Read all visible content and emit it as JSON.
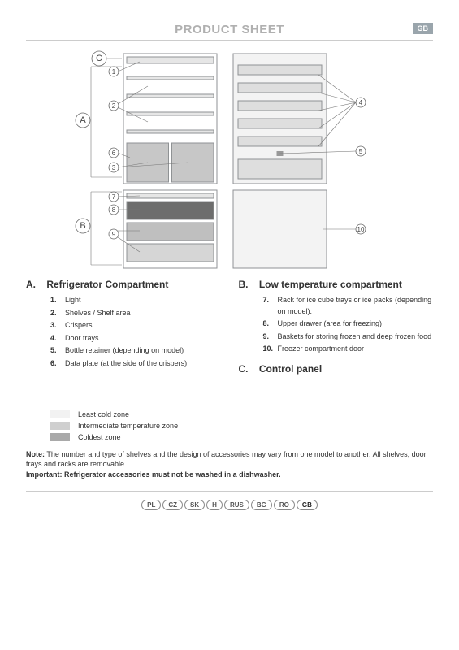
{
  "header": {
    "title": "PRODUCT SHEET",
    "lang": "GB"
  },
  "diagram": {
    "labels": {
      "A": "A",
      "B": "B",
      "C": "C"
    },
    "callouts": [
      "1",
      "2",
      "3",
      "4",
      "5",
      "6",
      "7",
      "8",
      "9",
      "10"
    ],
    "colors": {
      "outline": "#8f9294",
      "shelf": "#e6e6e6",
      "crisper": "#b7b7b7",
      "drawerDark": "#6d6d6d",
      "drawerMid": "#bfbfbf",
      "drawerLight": "#d6d6d6",
      "door": "#f3f3f3",
      "doorTray": "#dedede"
    }
  },
  "sectionA": {
    "letter": "A.",
    "title": "Refrigerator Compartment",
    "items": [
      {
        "n": "1.",
        "t": "Light"
      },
      {
        "n": "2.",
        "t": "Shelves / Shelf area"
      },
      {
        "n": "3.",
        "t": "Crispers"
      },
      {
        "n": "4.",
        "t": "Door trays"
      },
      {
        "n": "5.",
        "t": "Bottle retainer (depending on model)"
      },
      {
        "n": "6.",
        "t": "Data plate (at the side of the crispers)"
      }
    ]
  },
  "sectionB": {
    "letter": "B.",
    "title": "Low temperature compartment",
    "items": [
      {
        "n": "7.",
        "t": "Rack for ice cube trays or ice packs (depending on model)."
      },
      {
        "n": "8.",
        "t": "Upper drawer (area for freezing)"
      },
      {
        "n": "9.",
        "t": "Baskets for storing frozen and deep frozen food"
      },
      {
        "n": "10.",
        "t": "Freezer compartment door"
      }
    ]
  },
  "sectionC": {
    "letter": "C.",
    "title": "Control panel"
  },
  "legend": [
    {
      "color": "#f2f2f2",
      "label": "Least cold zone"
    },
    {
      "color": "#cfcfcf",
      "label": "Intermediate temperature zone"
    },
    {
      "color": "#a9a9a9",
      "label": "Coldest zone"
    }
  ],
  "notes": {
    "noteLabel": "Note:",
    "noteText": " The number and type of shelves and the design of accessories may vary from one model to another. All shelves, door trays and racks are removable.",
    "importantLabel": "Important:",
    "importantText": " Refrigerator accessories must not be washed in a dishwasher."
  },
  "countries": [
    "PL",
    "CZ",
    "SK",
    "H",
    "RUS",
    "BG",
    "RO",
    "GB"
  ],
  "activeCountry": "GB"
}
